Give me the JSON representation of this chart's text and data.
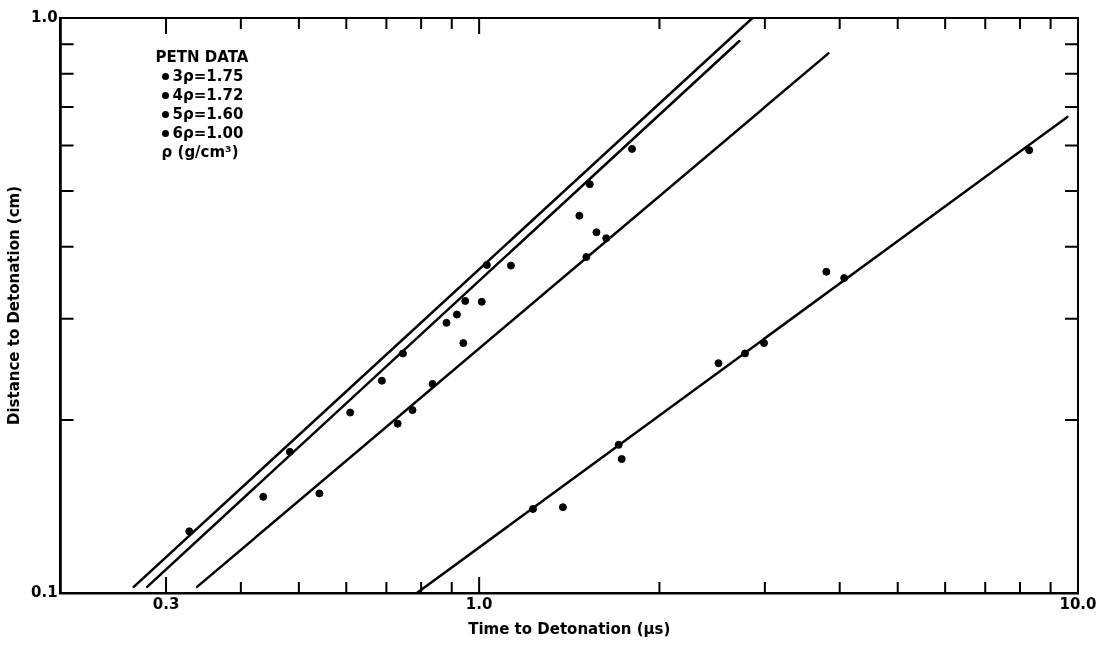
{
  "chart_data": {
    "type": "scatter",
    "xlabel": "Time to Detonation (μs)",
    "ylabel": "Distance to Detonation (cm)",
    "log": "xy",
    "grid": false,
    "legend": "top left",
    "legend_title": "PETN DATA",
    "marker": "circle",
    "xlim": [
      0.2,
      10
    ],
    "ylim": [
      0.1,
      1
    ],
    "xticks": [
      {
        "value": 0.3,
        "label": "0.3"
      },
      {
        "value": 0.4,
        "label": null
      },
      {
        "value": 0.5,
        "label": null
      },
      {
        "value": 0.6,
        "label": null
      },
      {
        "value": 0.7,
        "label": null
      },
      {
        "value": 0.8,
        "label": null
      },
      {
        "value": 0.9,
        "label": null
      },
      {
        "value": 1,
        "label": "1.0"
      },
      {
        "value": 2,
        "label": null
      },
      {
        "value": 3,
        "label": null
      },
      {
        "value": 4,
        "label": null
      },
      {
        "value": 5,
        "label": null
      },
      {
        "value": 6,
        "label": null
      },
      {
        "value": 7,
        "label": null
      },
      {
        "value": 8,
        "label": null
      },
      {
        "value": 9,
        "label": null
      },
      {
        "value": 10,
        "label": "10.0"
      }
    ],
    "yticks": [
      {
        "value": 0.1,
        "label": "0.1"
      },
      {
        "value": 0.2,
        "label": null
      },
      {
        "value": 0.3,
        "label": null
      },
      {
        "value": 0.4,
        "label": null
      },
      {
        "value": 0.5,
        "label": null
      },
      {
        "value": 0.6,
        "label": null
      },
      {
        "value": 0.7,
        "label": null
      },
      {
        "value": 0.8,
        "label": null
      },
      {
        "value": 0.9,
        "label": null
      },
      {
        "value": 1,
        "label": "1.0"
      }
    ],
    "series": [
      {
        "name": "3ρ=1.75",
        "color": "#000000",
        "x": [
          0.328,
          0.746,
          0.882,
          1.03,
          1.13,
          1.53,
          1.8
        ],
        "values": [
          0.128,
          0.261,
          0.295,
          0.372,
          0.371,
          0.514,
          0.592
        ]
      },
      {
        "name": "4ρ=1.72",
        "color": "#000000",
        "x": [
          0.436,
          0.483,
          0.609,
          0.688,
          0.918,
          0.948,
          1.01,
          0.941,
          1.47,
          1.57
        ],
        "values": [
          0.147,
          0.176,
          0.206,
          0.234,
          0.305,
          0.322,
          0.321,
          0.272,
          0.453,
          0.424
        ]
      },
      {
        "name": "5ρ=1.60",
        "color": "#000000",
        "x": [
          0.541,
          0.731,
          0.774,
          0.836,
          1.51,
          1.63
        ],
        "values": [
          0.149,
          0.197,
          0.208,
          0.231,
          0.384,
          0.414
        ]
      },
      {
        "name": "6ρ=1.00",
        "color": "#000000",
        "x": [
          1.23,
          1.38,
          1.71,
          1.73,
          2.51,
          2.78,
          2.99,
          3.8,
          4.07,
          8.29
        ],
        "values": [
          0.14,
          0.141,
          0.181,
          0.171,
          0.251,
          0.261,
          0.272,
          0.362,
          0.353,
          0.589
        ]
      },
      {
        "type": "line",
        "marker": "none",
        "color": "#000000",
        "x": [
          0.265,
          2.86
        ],
        "values": [
          0.1025,
          1.0
        ]
      },
      {
        "type": "line",
        "marker": "none",
        "color": "#000000",
        "x": [
          0.279,
          2.72
        ],
        "values": [
          0.1025,
          0.912
        ]
      },
      {
        "type": "line",
        "marker": "none",
        "color": "#000000",
        "x": [
          0.338,
          3.83
        ],
        "values": [
          0.1025,
          0.868
        ]
      },
      {
        "type": "line",
        "marker": "none",
        "color": "#000000",
        "x": [
          0.787,
          9.6
        ],
        "values": [
          0.1,
          0.673
        ]
      }
    ],
    "annotations": [
      "ρ (g/cm³)"
    ]
  }
}
